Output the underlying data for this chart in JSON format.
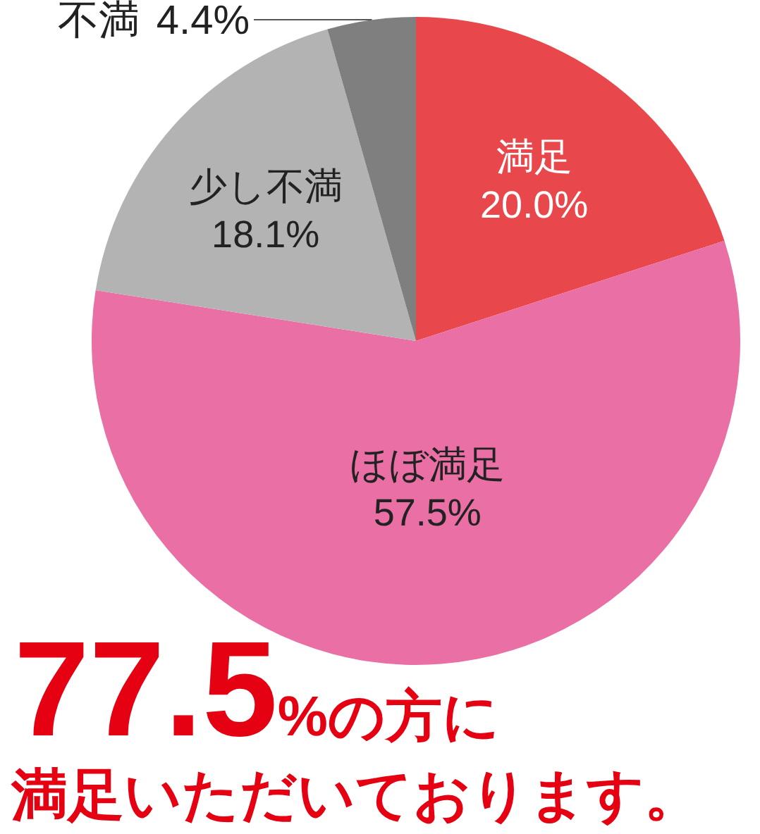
{
  "chart_data": {
    "type": "pie",
    "categories": [
      "満足",
      "ほぼ満足",
      "少し不満",
      "不満"
    ],
    "values": [
      20.0,
      57.5,
      18.1,
      4.4
    ],
    "colors": [
      "#e8474c",
      "#e96fa5",
      "#b3b3b3",
      "#7f7f7f"
    ],
    "value_labels": [
      "20.0%",
      "57.5%",
      "18.1%",
      "4.4%"
    ],
    "annotations": [
      "77.5%の方に",
      "満足いただいております。"
    ]
  }
}
